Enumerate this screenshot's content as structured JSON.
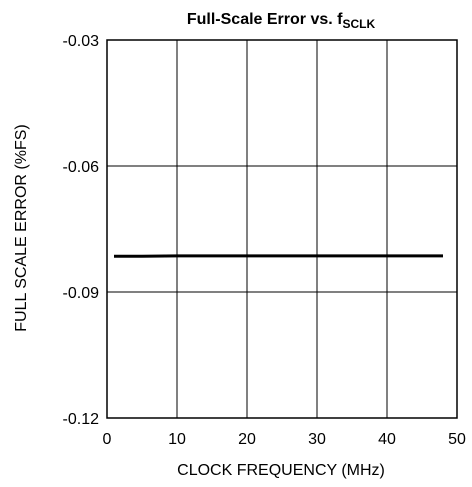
{
  "chart_data": {
    "type": "line",
    "title": "Full-Scale Error vs. f",
    "title_subscript": "SCLK",
    "xlabel": "CLOCK FREQUENCY (MHz)",
    "ylabel": "FULL SCALE ERROR (%FS)",
    "xlim": [
      0,
      50
    ],
    "ylim": [
      -0.12,
      -0.03
    ],
    "x_ticks": [
      "0",
      "10",
      "20",
      "30",
      "40",
      "50"
    ],
    "y_ticks": [
      "-0.03",
      "-0.06",
      "-0.09",
      "-0.12"
    ],
    "grid": true,
    "series": [
      {
        "x": [
          1,
          5,
          10,
          15,
          20,
          25,
          30,
          35,
          40,
          45,
          48
        ],
        "y": [
          -0.0815,
          -0.0815,
          -0.0814,
          -0.0814,
          -0.0814,
          -0.0814,
          -0.0814,
          -0.0814,
          -0.0814,
          -0.0814,
          -0.0814
        ],
        "color": "#000000"
      }
    ]
  }
}
